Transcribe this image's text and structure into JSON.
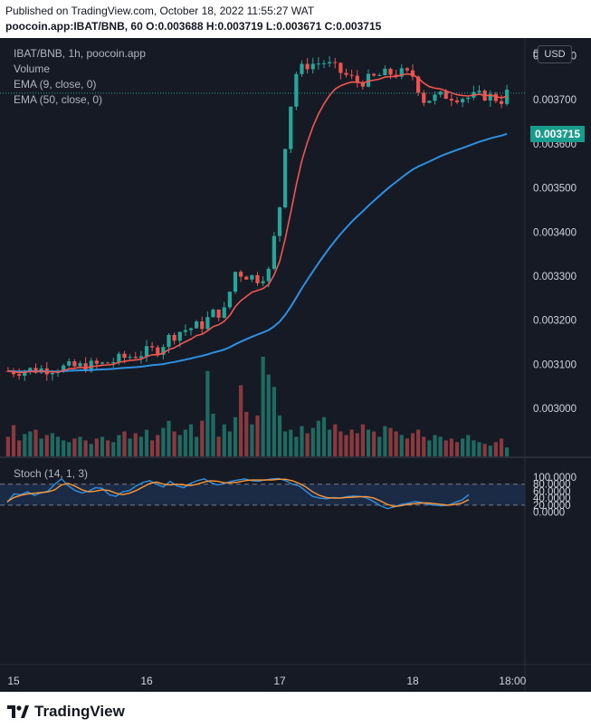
{
  "header": {
    "line1": "Published on TradingView.com, October 18, 2022 11:55:27 WAT",
    "line2": "poocoin.app:IBAT/BNB, 60 O:0.003688 H:0.003719 L:0.003671 C:0.003715"
  },
  "legend": {
    "symbol": "IBAT/BNB, 1h, poocoin.app",
    "volume": "Volume",
    "ema9": "EMA (9, close, 0)",
    "ema50": "EMA (50, close, 0)",
    "stoch": "Stoch (14, 1, 3)"
  },
  "currency": "USD",
  "last_price": "0.003715",
  "footer": {
    "logo": "TradingView"
  },
  "colors": {
    "bg": "#161a25",
    "up": "#26a69a",
    "down": "#ef5350",
    "ema9": "#f05650",
    "ema50": "#2f8fe0",
    "stoch_k": "#2f8fe0",
    "stoch_d": "#ff9632",
    "band": "#1f3150",
    "text": "#d1d4dc"
  },
  "chart_data": {
    "type": "candlestick",
    "price_axis": {
      "ticks": [
        "0.003800",
        "0.003700",
        "0.003600",
        "0.003500",
        "0.003400",
        "0.003300",
        "0.003200",
        "0.003100",
        "0.003000"
      ],
      "top_partial": "0",
      "range": [
        0.002965,
        0.00389
      ]
    },
    "stoch_axis": {
      "ticks": [
        "100.0000",
        "80.0000",
        "60.0000",
        "40.0000",
        "20.0000",
        "0.0000"
      ],
      "range": [
        -6,
        106
      ],
      "bands": [
        20,
        80
      ]
    },
    "x_ticks": [
      "15",
      "16",
      "17",
      "18",
      "18:00"
    ],
    "x_tick_hours": [
      0,
      24,
      48,
      72,
      90
    ],
    "candles_start_hour": -1,
    "anchors": [
      [
        0,
        0.003085
      ],
      [
        6,
        0.00309
      ],
      [
        12,
        0.003095
      ],
      [
        16,
        0.0031
      ],
      [
        20,
        0.003115
      ],
      [
        26,
        0.003135
      ],
      [
        28,
        0.00316
      ],
      [
        30,
        0.003175
      ],
      [
        34,
        0.00319
      ],
      [
        36,
        0.003215
      ],
      [
        38,
        0.00322
      ],
      [
        40,
        0.00331
      ],
      [
        44,
        0.003295
      ],
      [
        46,
        0.00331
      ],
      [
        47,
        0.003385
      ],
      [
        48,
        0.00346
      ],
      [
        49,
        0.0036
      ],
      [
        50,
        0.00369
      ],
      [
        51,
        0.00376
      ],
      [
        53,
        0.00378
      ],
      [
        56,
        0.003785
      ],
      [
        58,
        0.00377
      ],
      [
        60,
        0.003755
      ],
      [
        62,
        0.00374
      ],
      [
        64,
        0.003745
      ],
      [
        66,
        0.003755
      ],
      [
        68,
        0.00376
      ],
      [
        70,
        0.00376
      ],
      [
        72,
        0.003755
      ],
      [
        74,
        0.0037
      ],
      [
        78,
        0.00371
      ],
      [
        82,
        0.003705
      ],
      [
        85,
        0.00371
      ],
      [
        88,
        0.0037
      ],
      [
        89,
        0.003715
      ]
    ],
    "volumes": [
      22,
      35,
      18,
      25,
      28,
      30,
      20,
      24,
      26,
      22,
      18,
      16,
      20,
      22,
      18,
      14,
      20,
      22,
      18,
      16,
      24,
      28,
      20,
      26,
      22,
      30,
      18,
      24,
      32,
      40,
      28,
      24,
      30,
      36,
      22,
      40,
      96,
      48,
      22,
      36,
      28,
      44,
      80,
      50,
      36,
      46,
      112,
      92,
      78,
      46,
      28,
      30,
      22,
      34,
      26,
      32,
      40,
      44,
      30,
      36,
      28,
      24,
      30,
      26,
      36,
      30,
      28,
      22,
      34,
      32,
      28,
      24,
      20,
      26,
      30,
      22,
      18,
      24,
      22,
      18,
      20,
      16,
      20,
      24,
      18,
      16,
      14,
      12,
      16,
      20,
      10
    ],
    "stoch_k": [
      28,
      52,
      50,
      58,
      48,
      55,
      60,
      80,
      95,
      75,
      62,
      55,
      60,
      70,
      68,
      50,
      45,
      58,
      62,
      75,
      85,
      90,
      80,
      72,
      88,
      75,
      70,
      82,
      90,
      95,
      85,
      78,
      82,
      88,
      92,
      95,
      90,
      88,
      92,
      95,
      96,
      90,
      80,
      75,
      60,
      45,
      40,
      38,
      42,
      40,
      44,
      46,
      45,
      40,
      30,
      18,
      10,
      15,
      22,
      25,
      30,
      28,
      22,
      20,
      18,
      20,
      28,
      35,
      50
    ],
    "stoch_d": [
      30,
      42,
      48,
      52,
      54,
      56,
      58,
      64,
      78,
      82,
      74,
      64,
      58,
      60,
      64,
      62,
      54,
      50,
      54,
      62,
      72,
      82,
      86,
      80,
      78,
      80,
      78,
      76,
      80,
      86,
      90,
      88,
      84,
      84,
      86,
      90,
      92,
      92,
      92,
      92,
      94,
      94,
      90,
      82,
      72,
      58,
      48,
      42,
      40,
      40,
      42,
      43,
      44,
      44,
      40,
      32,
      22,
      16,
      18,
      22,
      24,
      26,
      26,
      24,
      22,
      20,
      22,
      26,
      36
    ]
  }
}
